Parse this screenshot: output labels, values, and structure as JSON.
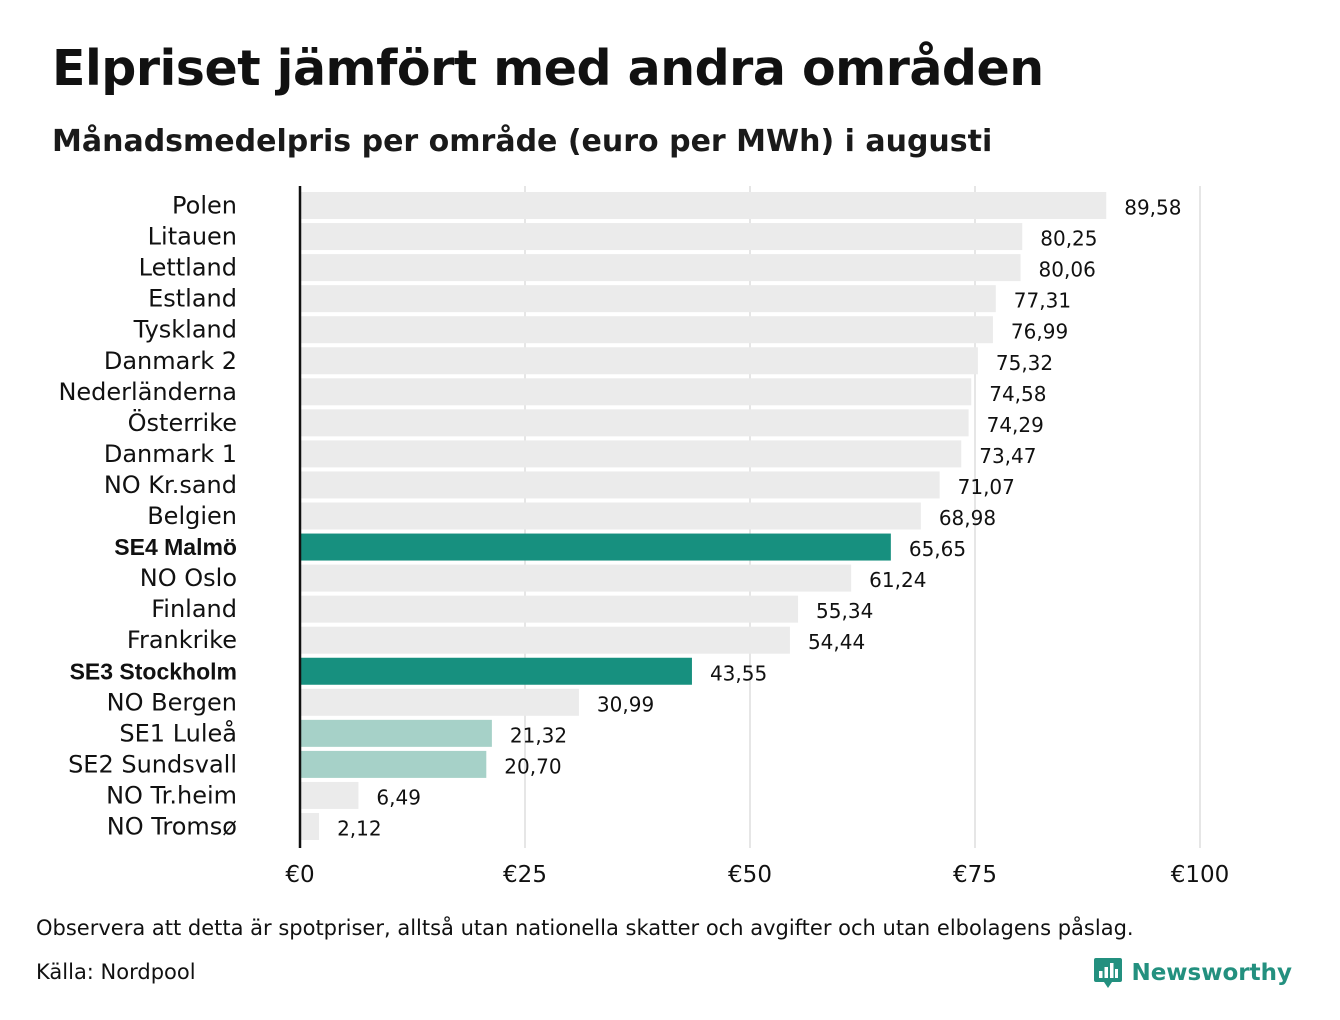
{
  "title": "Elpriset jämfört med andra områden",
  "subtitle": "Månadsmedelpris per område (euro per MWh) i augusti",
  "note": "Observera att detta är spotpriser, alltså utan nationella skatter och avgifter och utan elbolagens påslag.",
  "source": "Källa: Nordpool",
  "brand": {
    "name": "Newsworthy",
    "color": "#23907f",
    "icon": "bar-chart-speech-bubble-icon"
  },
  "colors": {
    "default": "#ebebeb",
    "highlight": "#17907f",
    "light_highlight": "#a6d1c8",
    "grid": "#d5d5d5",
    "axis": "#111111"
  },
  "chart_data": {
    "type": "bar",
    "orientation": "horizontal",
    "categories": [
      "Polen",
      "Litauen",
      "Lettland",
      "Estland",
      "Tyskland",
      "Danmark  2",
      "Nederländerna",
      "Österrike",
      "Danmark  1",
      "NO Kr.sand",
      "Belgien",
      "SE4 Malmö",
      "NO Oslo",
      "Finland",
      "Frankrike",
      "SE3 Stockholm",
      "NO Bergen",
      "SE1  Luleå",
      "SE2  Sundsvall",
      "NO Tr.heim",
      "NO Tromsø"
    ],
    "values": [
      89.58,
      80.25,
      80.06,
      77.31,
      76.99,
      75.32,
      74.58,
      74.29,
      73.47,
      71.07,
      68.98,
      65.65,
      61.24,
      55.34,
      54.44,
      43.55,
      30.99,
      21.32,
      20.7,
      6.49,
      2.12
    ],
    "value_labels": [
      "89,58",
      "80,25",
      "80,06",
      "77,31",
      "76,99",
      "75,32",
      "74,58",
      "74,29",
      "73,47",
      "71,07",
      "68,98",
      "65,65",
      "61,24",
      "55,34",
      "54,44",
      "43,55",
      "30,99",
      "21,32",
      "20,70",
      "6,49",
      "2,12"
    ],
    "bar_style": [
      "default",
      "default",
      "default",
      "default",
      "default",
      "default",
      "default",
      "default",
      "default",
      "default",
      "default",
      "highlight",
      "default",
      "default",
      "default",
      "highlight",
      "default",
      "light_highlight",
      "light_highlight",
      "default",
      "default"
    ],
    "bold_labels": [
      false,
      false,
      false,
      false,
      false,
      false,
      false,
      false,
      false,
      false,
      false,
      true,
      false,
      false,
      false,
      true,
      false,
      false,
      false,
      false,
      false
    ],
    "xlim": [
      0,
      100
    ],
    "xticks": [
      0,
      25,
      50,
      75,
      100
    ],
    "xtick_labels": [
      "€0",
      "€25",
      "€50",
      "€75",
      "€100"
    ],
    "grid": true,
    "xlabel": "",
    "ylabel": ""
  }
}
